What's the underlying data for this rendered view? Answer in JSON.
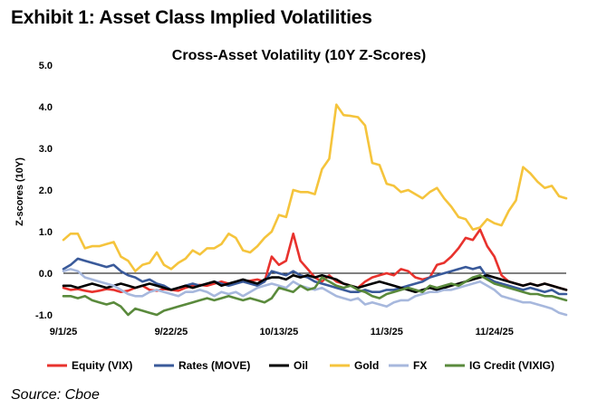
{
  "header": {
    "title": "Exhibit 1: Asset Class Implied Volatilities",
    "source": "Source: Cboe"
  },
  "chart_data": {
    "type": "line",
    "title": "Cross-Asset Volatility (10Y Z-Scores)",
    "xlabel": "",
    "ylabel": "Z-scores (10Y)",
    "ylim": [
      -1.0,
      5.0
    ],
    "yticks": [
      "5.0",
      "4.0",
      "3.0",
      "2.0",
      "1.0",
      "0.0",
      "-1.0"
    ],
    "ytick_values": [
      5,
      4,
      3,
      2,
      1,
      0,
      -1
    ],
    "xticks": [
      "9/1/25",
      "9/22/25",
      "10/13/25",
      "11/3/25",
      "11/24/25"
    ],
    "xtick_index": [
      0,
      15,
      30,
      45,
      60
    ],
    "n_points": 71,
    "x_start": "9/1/25",
    "x_step_days": 1.4,
    "legend_position": "bottom",
    "series": [
      {
        "name": "Equity (VIX)",
        "color": "#e8322d",
        "values": [
          -0.35,
          -0.4,
          -0.38,
          -0.42,
          -0.45,
          -0.42,
          -0.38,
          -0.4,
          -0.45,
          -0.42,
          -0.35,
          -0.3,
          -0.4,
          -0.42,
          -0.38,
          -0.4,
          -0.42,
          -0.35,
          -0.3,
          -0.28,
          -0.3,
          -0.25,
          -0.2,
          -0.25,
          -0.22,
          -0.2,
          -0.18,
          -0.15,
          -0.2,
          0.4,
          0.2,
          0.3,
          0.95,
          0.3,
          0.1,
          -0.1,
          -0.2,
          -0.05,
          -0.2,
          -0.25,
          -0.3,
          -0.35,
          -0.2,
          -0.1,
          -0.05,
          0.0,
          -0.05,
          0.1,
          0.05,
          -0.1,
          -0.15,
          -0.1,
          0.2,
          0.25,
          0.4,
          0.6,
          0.85,
          0.8,
          1.05,
          0.65,
          0.4,
          -0.05,
          -0.2,
          -0.25,
          -0.3,
          -0.25,
          -0.3,
          -0.25,
          -0.3,
          -0.35,
          -0.4
        ]
      },
      {
        "name": "Rates (MOVE)",
        "color": "#3a5a9a",
        "values": [
          0.1,
          0.2,
          0.35,
          0.3,
          0.25,
          0.2,
          0.15,
          0.2,
          0.05,
          -0.05,
          -0.1,
          -0.2,
          -0.15,
          -0.25,
          -0.3,
          -0.4,
          -0.35,
          -0.3,
          -0.25,
          -0.3,
          -0.25,
          -0.2,
          -0.25,
          -0.3,
          -0.25,
          -0.2,
          -0.25,
          -0.3,
          -0.2,
          0.05,
          0.0,
          -0.05,
          0.05,
          -0.05,
          -0.1,
          -0.2,
          -0.25,
          -0.3,
          -0.35,
          -0.4,
          -0.45,
          -0.45,
          -0.4,
          -0.45,
          -0.45,
          -0.4,
          -0.4,
          -0.35,
          -0.3,
          -0.25,
          -0.2,
          -0.1,
          -0.05,
          0.0,
          0.05,
          0.1,
          0.15,
          0.1,
          0.15,
          -0.1,
          -0.2,
          -0.25,
          -0.3,
          -0.35,
          -0.4,
          -0.35,
          -0.4,
          -0.45,
          -0.4,
          -0.5,
          -0.5
        ]
      },
      {
        "name": "Oil",
        "color": "#000000",
        "values": [
          -0.3,
          -0.3,
          -0.35,
          -0.3,
          -0.25,
          -0.3,
          -0.35,
          -0.3,
          -0.25,
          -0.3,
          -0.35,
          -0.3,
          -0.25,
          -0.3,
          -0.35,
          -0.4,
          -0.35,
          -0.3,
          -0.35,
          -0.3,
          -0.25,
          -0.2,
          -0.3,
          -0.25,
          -0.2,
          -0.15,
          -0.2,
          -0.25,
          -0.15,
          -0.1,
          -0.1,
          -0.15,
          -0.05,
          -0.1,
          -0.05,
          -0.1,
          -0.05,
          -0.1,
          -0.15,
          -0.25,
          -0.3,
          -0.35,
          -0.3,
          -0.25,
          -0.2,
          -0.25,
          -0.3,
          -0.35,
          -0.4,
          -0.45,
          -0.4,
          -0.35,
          -0.4,
          -0.35,
          -0.3,
          -0.25,
          -0.2,
          -0.15,
          -0.1,
          -0.05,
          -0.1,
          -0.15,
          -0.2,
          -0.25,
          -0.3,
          -0.25,
          -0.3,
          -0.25,
          -0.3,
          -0.35,
          -0.4
        ]
      },
      {
        "name": "Gold",
        "color": "#f5c43c",
        "values": [
          0.8,
          0.95,
          0.95,
          0.6,
          0.65,
          0.65,
          0.7,
          0.75,
          0.4,
          0.3,
          0.05,
          0.2,
          0.25,
          0.5,
          0.2,
          0.1,
          0.25,
          0.35,
          0.55,
          0.45,
          0.6,
          0.6,
          0.7,
          0.95,
          0.85,
          0.55,
          0.5,
          0.65,
          0.85,
          1.0,
          1.4,
          1.35,
          2.0,
          1.95,
          1.95,
          1.9,
          2.5,
          2.75,
          4.05,
          3.8,
          3.78,
          3.75,
          3.55,
          2.65,
          2.6,
          2.15,
          2.1,
          1.95,
          2.0,
          1.9,
          1.8,
          1.95,
          2.05,
          1.8,
          1.6,
          1.35,
          1.3,
          1.05,
          1.1,
          1.3,
          1.2,
          1.15,
          1.5,
          1.75,
          2.55,
          2.4,
          2.2,
          2.05,
          2.1,
          1.85,
          1.8
        ]
      },
      {
        "name": "FX",
        "color": "#a7b8dd",
        "values": [
          0.05,
          0.1,
          0.05,
          -0.1,
          -0.15,
          -0.2,
          -0.25,
          -0.3,
          -0.4,
          -0.5,
          -0.55,
          -0.55,
          -0.45,
          -0.4,
          -0.45,
          -0.5,
          -0.55,
          -0.45,
          -0.45,
          -0.4,
          -0.45,
          -0.55,
          -0.45,
          -0.5,
          -0.45,
          -0.55,
          -0.45,
          -0.35,
          -0.3,
          -0.25,
          -0.3,
          -0.35,
          -0.2,
          -0.3,
          -0.35,
          -0.4,
          -0.35,
          -0.45,
          -0.55,
          -0.6,
          -0.65,
          -0.6,
          -0.75,
          -0.7,
          -0.75,
          -0.8,
          -0.7,
          -0.65,
          -0.65,
          -0.55,
          -0.5,
          -0.45,
          -0.45,
          -0.4,
          -0.4,
          -0.35,
          -0.3,
          -0.25,
          -0.2,
          -0.3,
          -0.4,
          -0.55,
          -0.6,
          -0.65,
          -0.7,
          -0.7,
          -0.75,
          -0.8,
          -0.85,
          -0.95,
          -1.0
        ]
      },
      {
        "name": "IG Credit (VIXIG)",
        "color": "#5a8a3c",
        "values": [
          -0.55,
          -0.55,
          -0.6,
          -0.55,
          -0.65,
          -0.7,
          -0.75,
          -0.7,
          -0.8,
          -1.0,
          -0.85,
          -0.9,
          -0.95,
          -1.0,
          -0.9,
          -0.85,
          -0.8,
          -0.75,
          -0.7,
          -0.65,
          -0.6,
          -0.65,
          -0.6,
          -0.55,
          -0.6,
          -0.65,
          -0.6,
          -0.65,
          -0.7,
          -0.6,
          -0.35,
          -0.4,
          -0.45,
          -0.3,
          -0.4,
          -0.35,
          -0.1,
          -0.2,
          -0.3,
          -0.35,
          -0.3,
          -0.4,
          -0.45,
          -0.55,
          -0.6,
          -0.5,
          -0.45,
          -0.4,
          -0.35,
          -0.4,
          -0.45,
          -0.3,
          -0.35,
          -0.3,
          -0.25,
          -0.3,
          -0.2,
          -0.1,
          -0.05,
          -0.15,
          -0.25,
          -0.3,
          -0.35,
          -0.4,
          -0.45,
          -0.5,
          -0.5,
          -0.55,
          -0.55,
          -0.6,
          -0.65
        ]
      }
    ]
  }
}
